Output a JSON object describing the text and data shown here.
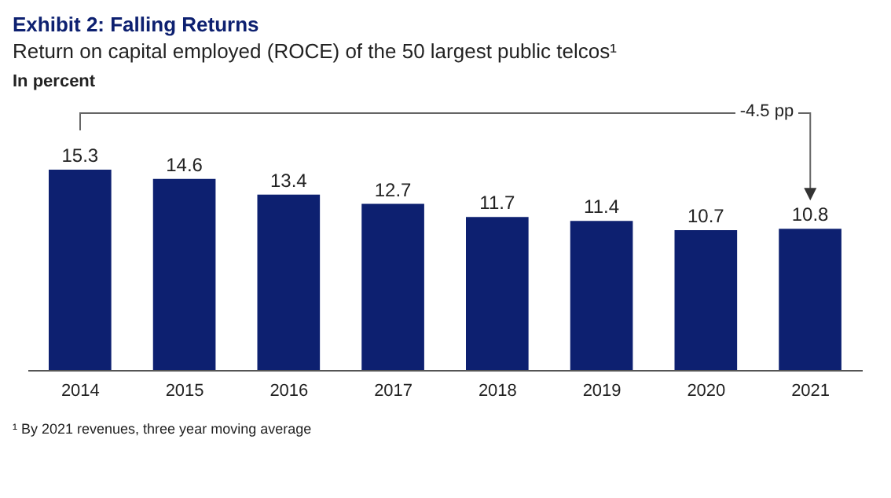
{
  "chart_data": {
    "type": "bar",
    "title": "Exhibit 2: Falling Returns",
    "subtitle": "Return on capital employed (ROCE) of the 50 largest public telcos¹",
    "ylabel": "In percent",
    "categories": [
      "2014",
      "2015",
      "2016",
      "2017",
      "2018",
      "2019",
      "2020",
      "2021"
    ],
    "values": [
      15.3,
      14.6,
      13.4,
      12.7,
      11.7,
      11.4,
      10.7,
      10.8
    ],
    "color": "#0d2070",
    "data_labels": true,
    "annotations": [
      "-4.5 pp",
      "¹ By 2021 revenues, three year moving average"
    ]
  }
}
